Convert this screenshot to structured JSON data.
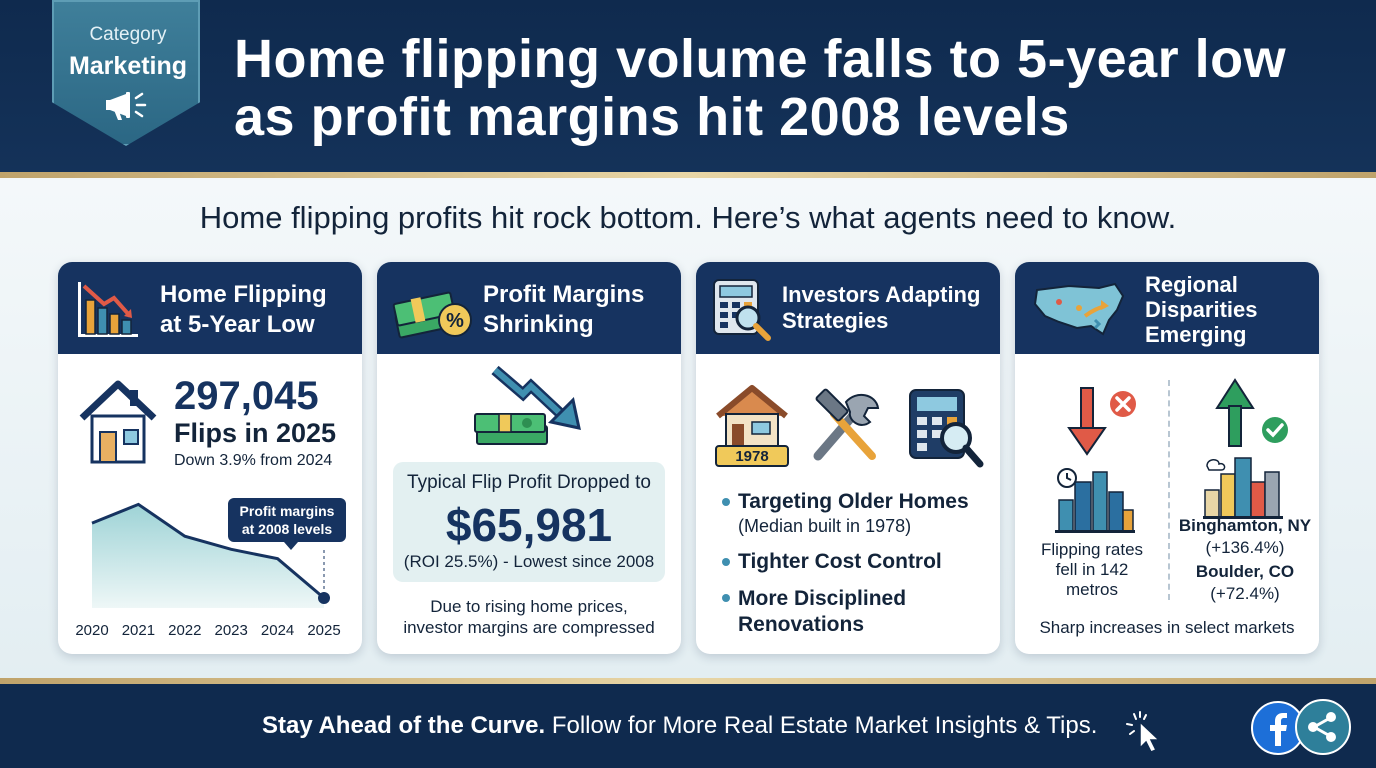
{
  "header": {
    "badge_category": "Category",
    "badge_label": "Marketing",
    "title_line1": "Home flipping volume falls to 5-year low",
    "title_line2": "as profit margins hit 2008 levels"
  },
  "subtitle": "Home flipping profits hit rock bottom. Here’s what agents need to know.",
  "cards": [
    {
      "title_line1": "Home Flipping",
      "title_line2": "at 5-Year Low",
      "big_number": "297,045",
      "big_label": "Flips in 2025",
      "change": "Down 3.9% from 2024",
      "callout_line1": "Profit margins",
      "callout_line2": "at 2008 levels",
      "years": [
        "2020",
        "2021",
        "2022",
        "2023",
        "2024",
        "2025"
      ]
    },
    {
      "title_line1": "Profit Margins",
      "title_line2": "Shrinking",
      "box_label": "Typical Flip Profit Dropped to",
      "box_value": "$65,981",
      "box_note": "(ROI 25.5%) - Lowest since 2008",
      "footnote_line1": "Due to rising home prices,",
      "footnote_line2": "investor margins are compressed"
    },
    {
      "title_line1": "Investors Adapting",
      "title_line2": "Strategies",
      "house_year": "1978",
      "bullet1_title": "Targeting Older Homes",
      "bullet1_sub": "(Median built in 1978)",
      "bullet2_title": "Tighter Cost Control",
      "bullet3_line1": "More Disciplined",
      "bullet3_line2": "Renovations"
    },
    {
      "title_line1": "Regional",
      "title_line2": "Disparities",
      "title_line3": "Emerging",
      "left_line1": "Flipping rates",
      "left_line2": "fell in 142",
      "left_line3": "metros",
      "city1": "Binghamton, NY",
      "city1_change": "(+136.4%)",
      "city2": "Boulder, CO",
      "city2_change": "(+72.4%)",
      "footnote": "Sharp increases in select markets"
    }
  ],
  "footer": {
    "bold": "Stay Ahead of the Curve.",
    "text": " Follow for More Real Estate Market Insights & Tips."
  },
  "icons": [
    "megaphone-icon",
    "declining-bar-chart-icon",
    "money-stack-percent-icon",
    "calculator-magnifier-icon",
    "us-map-icon",
    "house-icon",
    "downtrend-arrow-icon",
    "money-stack-icon",
    "house-1978-icon",
    "tools-icon",
    "calculator-icon",
    "down-arrow-x-icon",
    "up-arrow-check-icon",
    "city-skyline-icon",
    "cursor-click-icon",
    "facebook-icon",
    "share-icon"
  ],
  "chart_data": {
    "type": "area",
    "x": [
      "2020",
      "2021",
      "2022",
      "2023",
      "2024",
      "2025"
    ],
    "values": [
      80,
      100,
      66,
      52,
      42,
      0
    ],
    "annotation": "Profit margins at 2008 levels"
  },
  "colors": {
    "navy": "#163360",
    "gold": "#d4bd87",
    "teal": "#3f7f9a",
    "down_red": "#e05a47",
    "up_green": "#2e9e5e"
  }
}
